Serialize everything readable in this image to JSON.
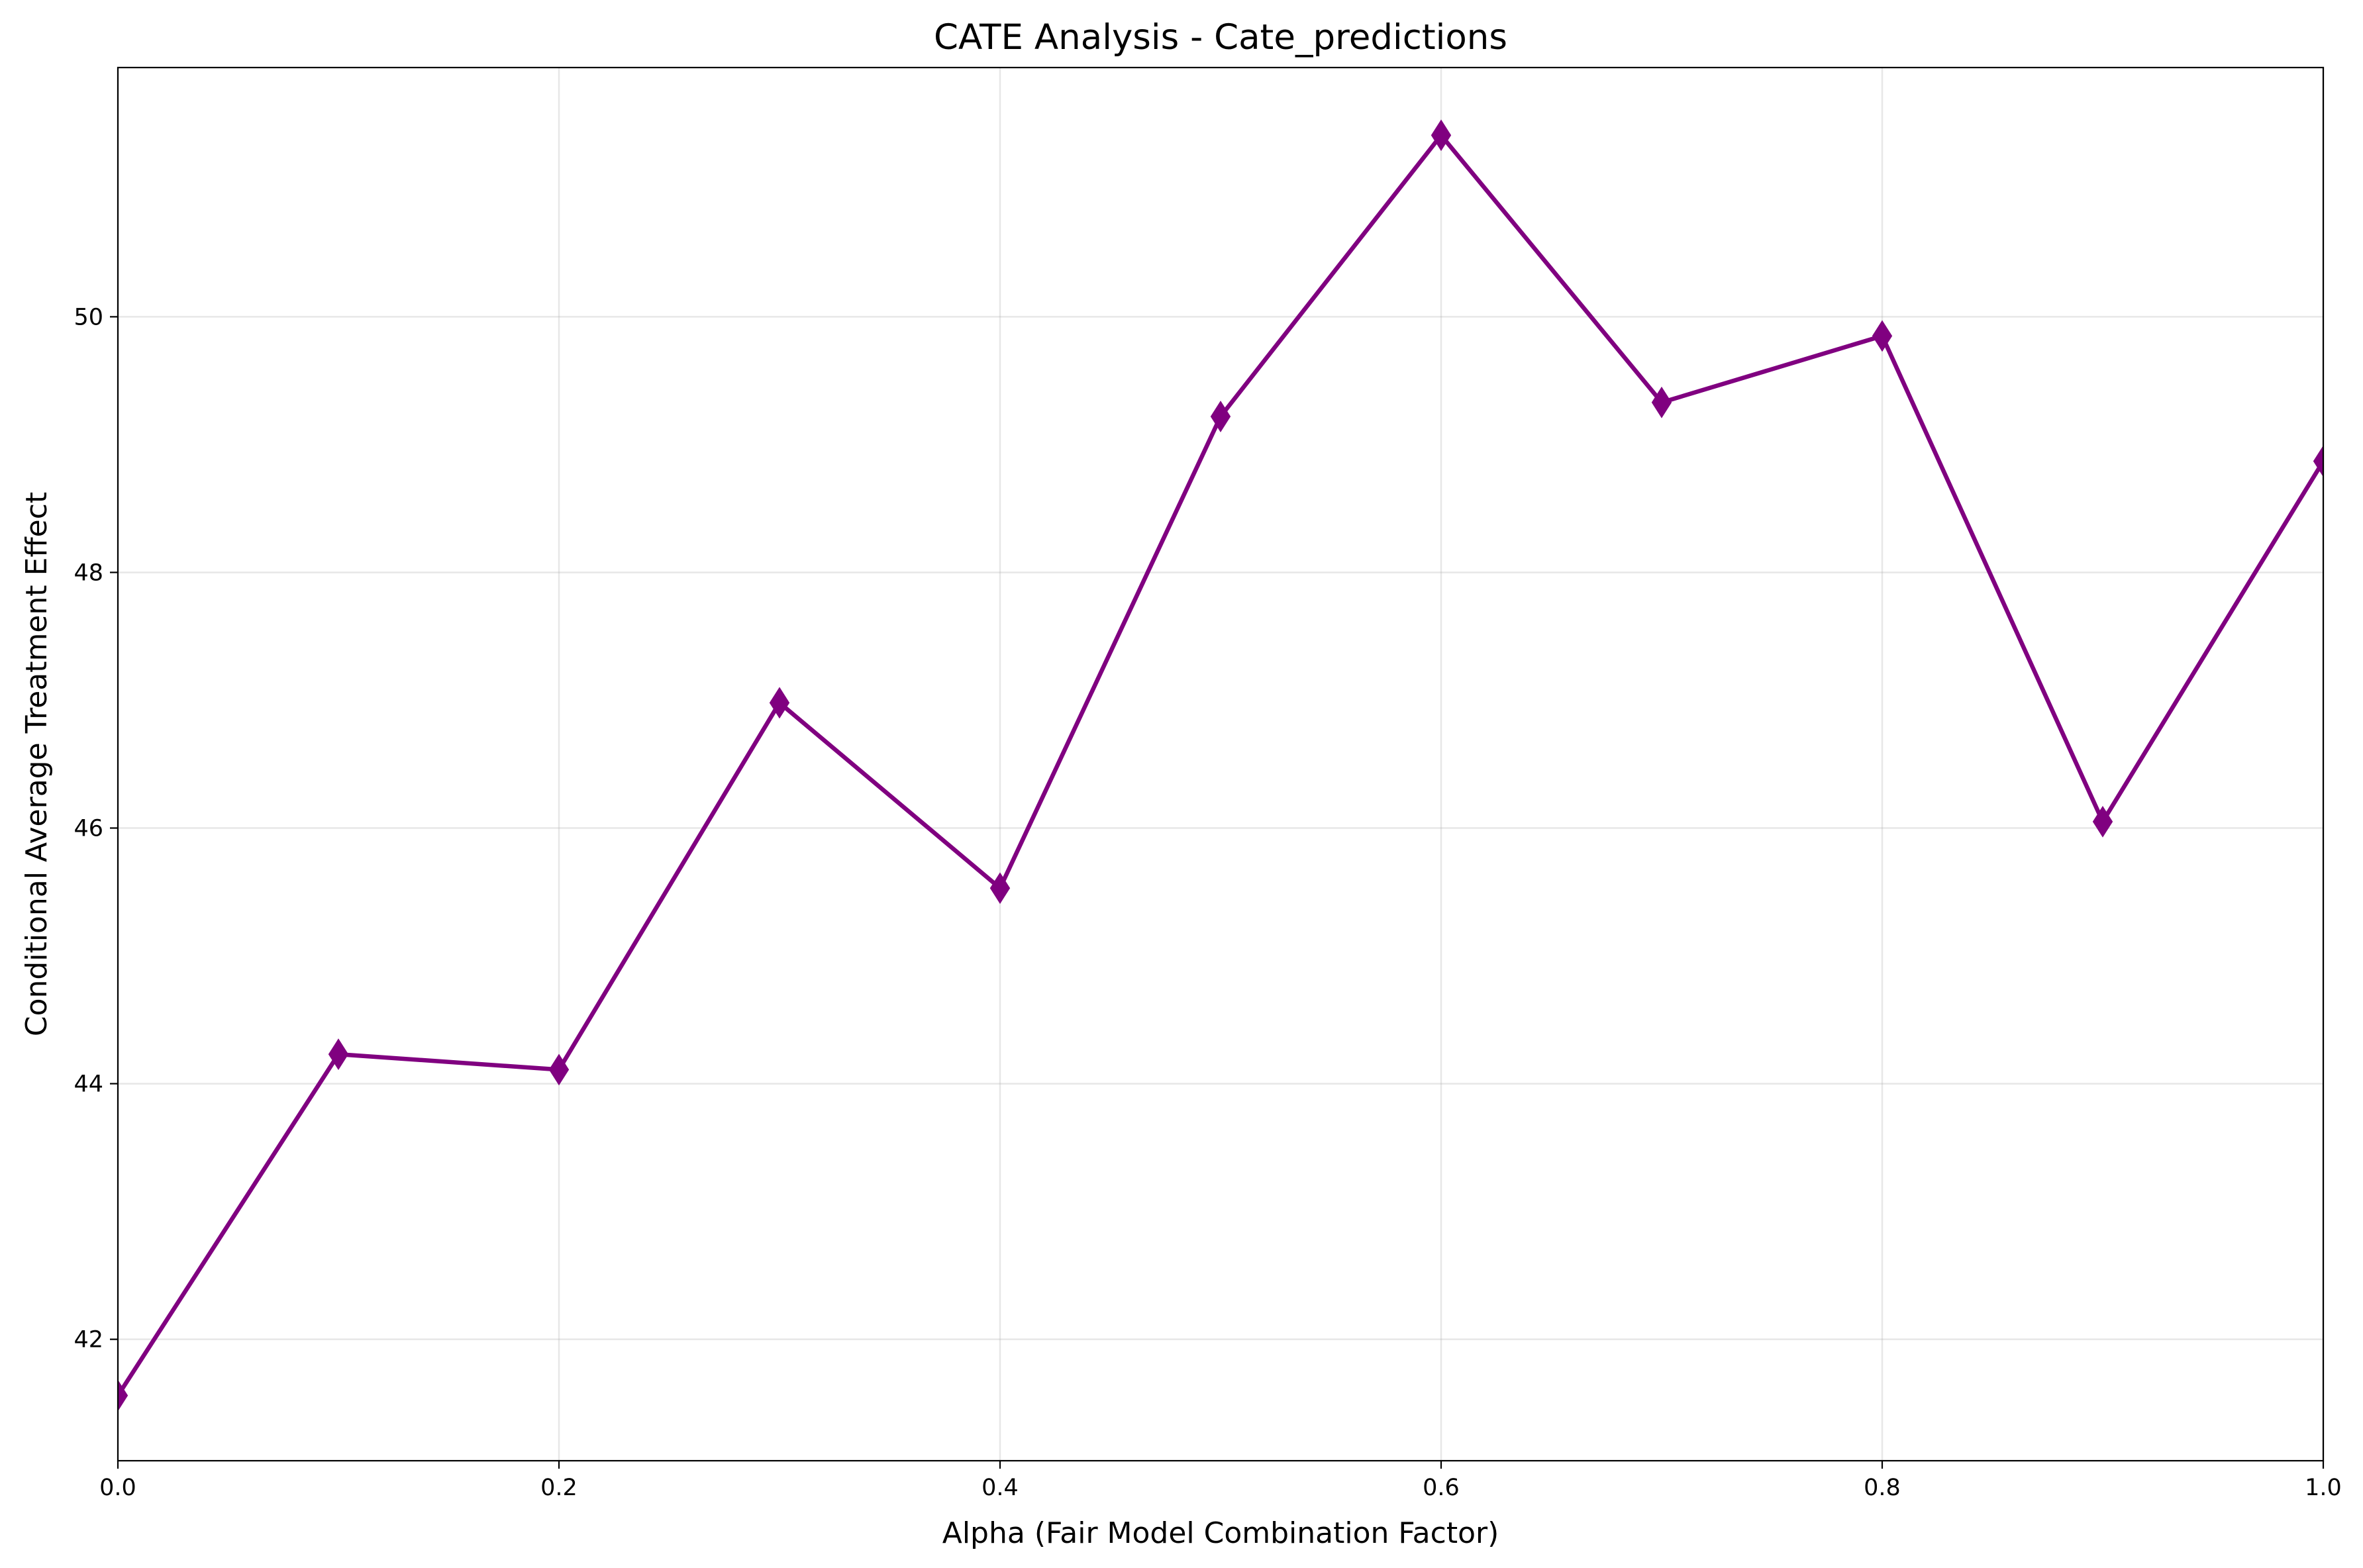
{
  "chart_data": {
    "type": "line",
    "title": "CATE Analysis - Cate_predictions",
    "xlabel": "Alpha (Fair Model Combination Factor)",
    "ylabel": "Conditional Average Treatment Effect",
    "xlim": [
      0.0,
      1.0
    ],
    "ylim": [
      41.05,
      51.95
    ],
    "x_ticks": [
      0.0,
      0.2,
      0.4,
      0.6,
      0.8,
      1.0
    ],
    "x_tick_labels": [
      "0.0",
      "0.2",
      "0.4",
      "0.6",
      "0.8",
      "1.0"
    ],
    "y_ticks": [
      42,
      44,
      46,
      48,
      50
    ],
    "y_tick_labels": [
      "42",
      "44",
      "46",
      "48",
      "50"
    ],
    "grid": true,
    "legend": "none",
    "series": [
      {
        "color": "#800080",
        "marker": "diamond",
        "x": [
          0.0,
          0.1,
          0.2,
          0.3,
          0.4,
          0.5,
          0.6,
          0.7,
          0.8,
          0.9,
          1.0
        ],
        "y": [
          41.56,
          44.23,
          44.11,
          46.98,
          45.53,
          49.22,
          51.42,
          49.33,
          49.85,
          46.05,
          48.87
        ]
      }
    ]
  }
}
